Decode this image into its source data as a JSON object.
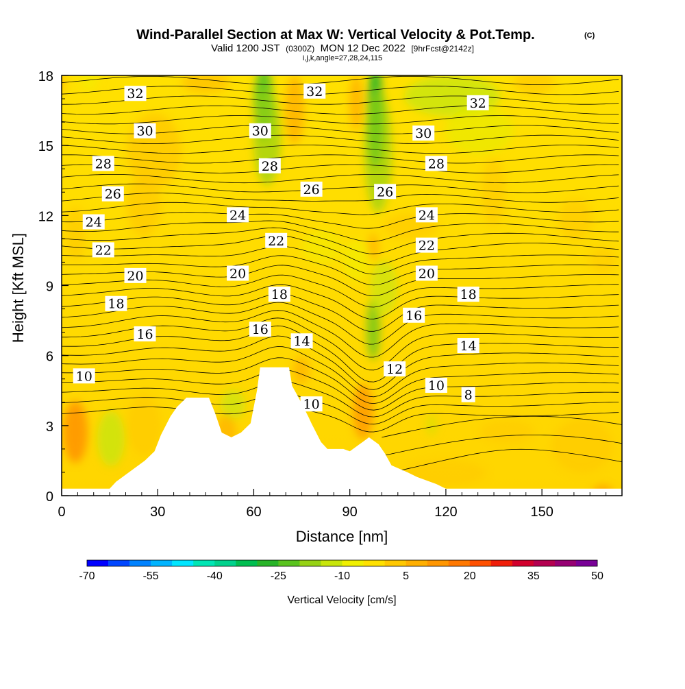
{
  "header": {
    "title": "Wind-Parallel Section at Max W: Vertical Velocity & Pot.Temp.",
    "copyright": "(C)",
    "valid_main": "Valid 1200 JST",
    "valid_utc": "(0300Z)",
    "valid_date": "MON 12 Dec 2022",
    "forecast_info": "[9hrFcst@2142z]",
    "ijk_line": "i,j,k,angle=27,28,24,115"
  },
  "chart_data": {
    "type": "heatmap",
    "xlabel": "Distance [nm]",
    "ylabel": "Height [Kft MSL]",
    "xlim": [
      0,
      175
    ],
    "ylim": [
      0,
      18
    ],
    "xticks": [
      0,
      30,
      60,
      90,
      120,
      150
    ],
    "yticks": [
      0,
      3,
      6,
      9,
      12,
      15,
      18
    ],
    "grid": false,
    "field": "Vertical Velocity",
    "contour_field": "Potential Temperature",
    "contour_labels": [
      {
        "value": "32",
        "x": 23,
        "y": 17.2
      },
      {
        "value": "32",
        "x": 79,
        "y": 17.3
      },
      {
        "value": "32",
        "x": 130,
        "y": 16.8
      },
      {
        "value": "30",
        "x": 26,
        "y": 15.6
      },
      {
        "value": "30",
        "x": 62,
        "y": 15.6
      },
      {
        "value": "30",
        "x": 113,
        "y": 15.5
      },
      {
        "value": "28",
        "x": 13,
        "y": 14.2
      },
      {
        "value": "28",
        "x": 65,
        "y": 14.1
      },
      {
        "value": "28",
        "x": 117,
        "y": 14.2
      },
      {
        "value": "26",
        "x": 16,
        "y": 12.9
      },
      {
        "value": "26",
        "x": 78,
        "y": 13.1
      },
      {
        "value": "26",
        "x": 101,
        "y": 13.0
      },
      {
        "value": "24",
        "x": 10,
        "y": 11.7
      },
      {
        "value": "24",
        "x": 55,
        "y": 12.0
      },
      {
        "value": "24",
        "x": 114,
        "y": 12.0
      },
      {
        "value": "22",
        "x": 13,
        "y": 10.5
      },
      {
        "value": "22",
        "x": 67,
        "y": 10.9
      },
      {
        "value": "22",
        "x": 114,
        "y": 10.7
      },
      {
        "value": "20",
        "x": 23,
        "y": 9.4
      },
      {
        "value": "20",
        "x": 55,
        "y": 9.5
      },
      {
        "value": "20",
        "x": 114,
        "y": 9.5
      },
      {
        "value": "18",
        "x": 17,
        "y": 8.2
      },
      {
        "value": "18",
        "x": 68,
        "y": 8.6
      },
      {
        "value": "18",
        "x": 127,
        "y": 8.6
      },
      {
        "value": "16",
        "x": 26,
        "y": 6.9
      },
      {
        "value": "16",
        "x": 62,
        "y": 7.1
      },
      {
        "value": "16",
        "x": 110,
        "y": 7.7
      },
      {
        "value": "14",
        "x": 75,
        "y": 6.6
      },
      {
        "value": "14",
        "x": 127,
        "y": 6.4
      },
      {
        "value": "12",
        "x": 104,
        "y": 5.4
      },
      {
        "value": "10",
        "x": 7,
        "y": 5.1
      },
      {
        "value": "10",
        "x": 78,
        "y": 3.9
      },
      {
        "value": "10",
        "x": 117,
        "y": 4.7
      },
      {
        "value": "8",
        "x": 127,
        "y": 4.3
      }
    ],
    "terrain": [
      [
        0,
        0.3
      ],
      [
        15,
        0.3
      ],
      [
        17,
        0.6
      ],
      [
        20,
        0.9
      ],
      [
        23,
        1.2
      ],
      [
        26,
        1.5
      ],
      [
        29,
        1.9
      ],
      [
        31,
        2.6
      ],
      [
        34,
        3.4
      ],
      [
        36,
        3.8
      ],
      [
        39,
        4.2
      ],
      [
        46,
        4.2
      ],
      [
        48,
        3.5
      ],
      [
        50,
        2.7
      ],
      [
        53,
        2.5
      ],
      [
        56,
        2.7
      ],
      [
        59,
        3.1
      ],
      [
        61,
        4.5
      ],
      [
        62,
        5.5
      ],
      [
        71,
        5.5
      ],
      [
        72,
        4.7
      ],
      [
        74,
        4.2
      ],
      [
        77,
        3.4
      ],
      [
        78,
        3.1
      ],
      [
        81,
        2.3
      ],
      [
        83,
        2.0
      ],
      [
        88,
        2.0
      ],
      [
        90,
        1.9
      ],
      [
        92,
        2.1
      ],
      [
        94,
        2.3
      ],
      [
        96,
        2.5
      ],
      [
        99,
        2.2
      ],
      [
        101,
        1.8
      ],
      [
        103,
        1.3
      ],
      [
        108,
        1.0
      ],
      [
        111,
        0.8
      ],
      [
        117,
        0.5
      ],
      [
        120,
        0.3
      ],
      [
        175,
        0.3
      ]
    ],
    "colorbar": {
      "ticks": [
        "-70",
        "-55",
        "-40",
        "-25",
        "-10",
        "5",
        "20",
        "35",
        "50"
      ],
      "title": "Vertical Velocity [cm/s]",
      "colors": [
        "#0000ff",
        "#0046ff",
        "#0082ff",
        "#00b4ff",
        "#00e6ff",
        "#00e6b4",
        "#00d28c",
        "#00be50",
        "#28b428",
        "#5ac31e",
        "#96d214",
        "#c8e60a",
        "#f0f000",
        "#ffe100",
        "#ffc800",
        "#ffaf00",
        "#ff9600",
        "#ff7800",
        "#ff5000",
        "#f01e0a",
        "#d2002d",
        "#b40050",
        "#960073",
        "#780096"
      ]
    }
  }
}
